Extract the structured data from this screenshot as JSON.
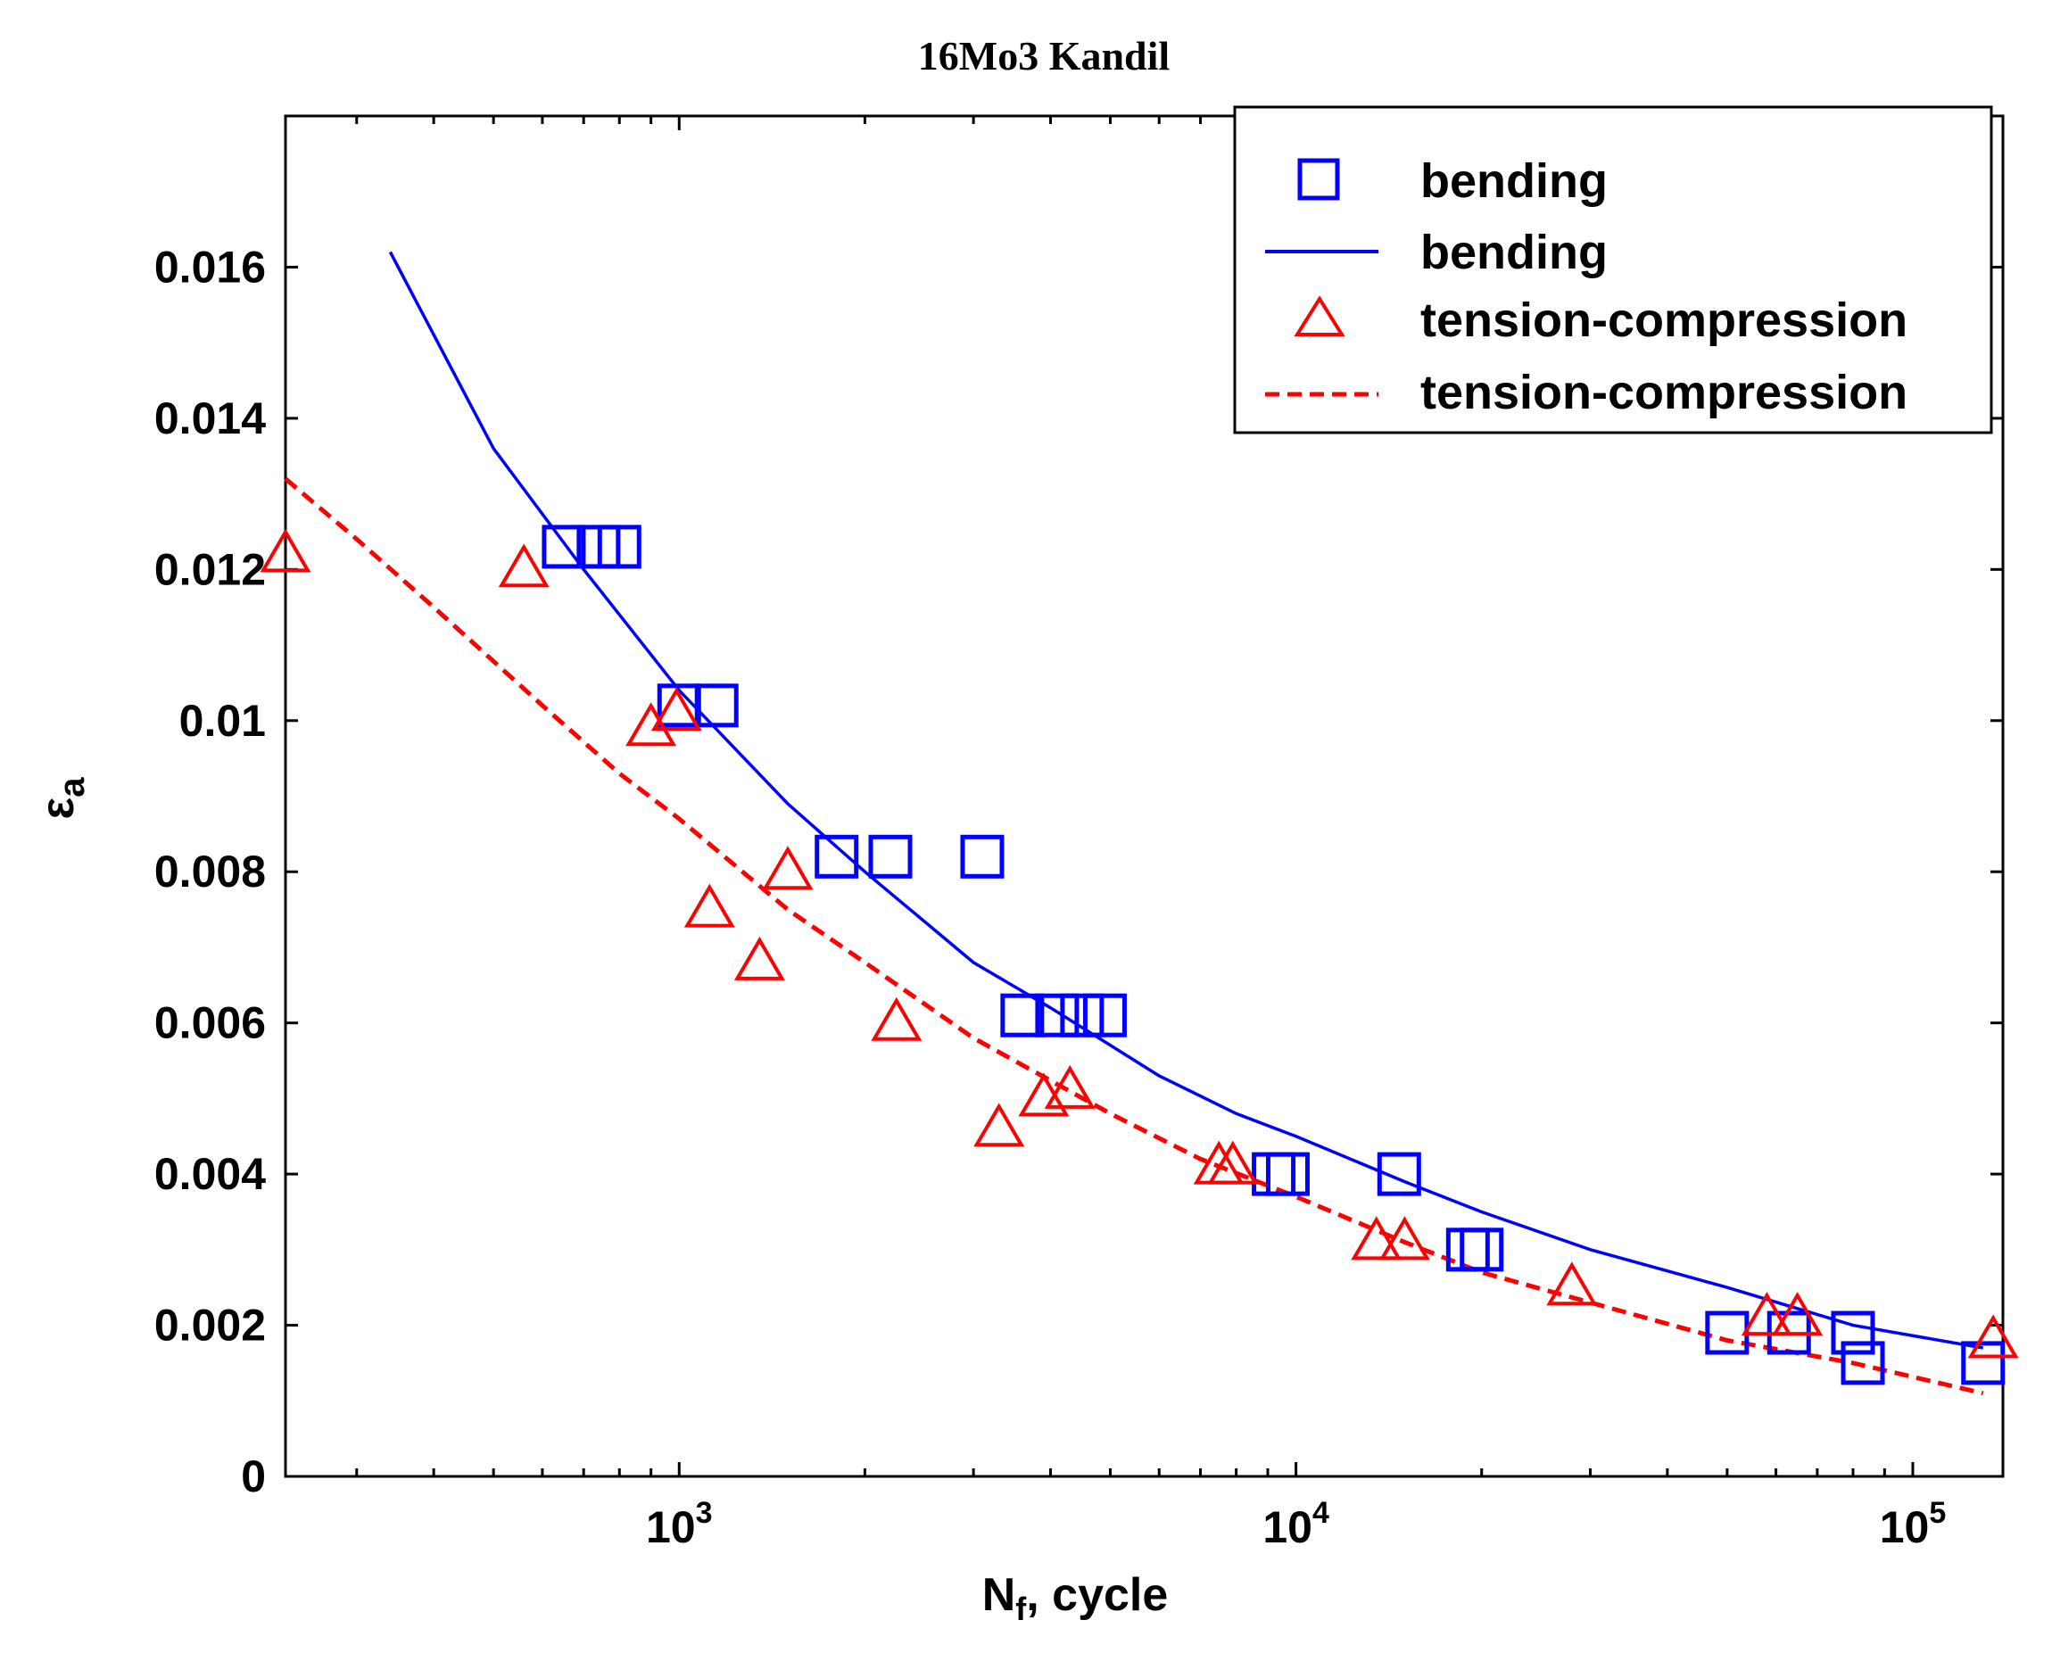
{
  "chart_data": {
    "type": "scatter",
    "title": "16Mo3  Kandil",
    "xlabel": {
      "main": "N",
      "sub": "f",
      "rest": ", cycle"
    },
    "ylabel": {
      "main": "ε",
      "sub": "a"
    },
    "xscale": "log",
    "xlim": [
      230,
      140000
    ],
    "ylim": [
      0,
      0.018
    ],
    "x_ticks": [
      {
        "value": 1000,
        "base": "10",
        "exp": "3"
      },
      {
        "value": 10000,
        "base": "10",
        "exp": "4"
      },
      {
        "value": 100000,
        "base": "10",
        "exp": "5"
      }
    ],
    "y_ticks": [
      {
        "value": 0,
        "label": "0"
      },
      {
        "value": 0.002,
        "label": "0.002"
      },
      {
        "value": 0.004,
        "label": "0.004"
      },
      {
        "value": 0.006,
        "label": "0.006"
      },
      {
        "value": 0.008,
        "label": "0.008"
      },
      {
        "value": 0.01,
        "label": "0.01"
      },
      {
        "value": 0.012,
        "label": "0.012"
      },
      {
        "value": 0.014,
        "label": "0.014"
      },
      {
        "value": 0.016,
        "label": "0.016"
      }
    ],
    "legend_position": "top-right",
    "series": [
      {
        "name": "bending",
        "kind": "points",
        "marker": "square",
        "color": "#0000ff",
        "points": [
          [
            650,
            0.0123
          ],
          [
            740,
            0.0123
          ],
          [
            800,
            0.0123
          ],
          [
            1000,
            0.0102
          ],
          [
            1150,
            0.0102
          ],
          [
            1800,
            0.0082
          ],
          [
            2200,
            0.0082
          ],
          [
            3100,
            0.0082
          ],
          [
            3600,
            0.0061
          ],
          [
            4100,
            0.0061
          ],
          [
            4500,
            0.0061
          ],
          [
            4900,
            0.0061
          ],
          [
            9200,
            0.004
          ],
          [
            9700,
            0.004
          ],
          [
            14700,
            0.004
          ],
          [
            19000,
            0.003
          ],
          [
            20000,
            0.003
          ],
          [
            50000,
            0.0019
          ],
          [
            63000,
            0.0019
          ],
          [
            80000,
            0.0019
          ],
          [
            83000,
            0.0015
          ],
          [
            130000,
            0.0015
          ]
        ]
      },
      {
        "name": "bending",
        "kind": "line",
        "style": "solid",
        "color": "#0000ff",
        "points": [
          [
            340,
            0.0162
          ],
          [
            500,
            0.0136
          ],
          [
            700,
            0.012
          ],
          [
            1000,
            0.0104
          ],
          [
            1500,
            0.0089
          ],
          [
            2000,
            0.008
          ],
          [
            3000,
            0.0068
          ],
          [
            4000,
            0.0062
          ],
          [
            6000,
            0.0053
          ],
          [
            8000,
            0.0048
          ],
          [
            10000,
            0.0045
          ],
          [
            15000,
            0.0039
          ],
          [
            20000,
            0.0035
          ],
          [
            30000,
            0.003
          ],
          [
            50000,
            0.0025
          ],
          [
            80000,
            0.002
          ],
          [
            130000,
            0.0017
          ]
        ]
      },
      {
        "name": "tension-compression",
        "kind": "points",
        "marker": "triangle",
        "color": "#ff0000",
        "points": [
          [
            230,
            0.0122
          ],
          [
            560,
            0.012
          ],
          [
            900,
            0.0099
          ],
          [
            990,
            0.0101
          ],
          [
            1120,
            0.0075
          ],
          [
            1500,
            0.008
          ],
          [
            1350,
            0.0068
          ],
          [
            2250,
            0.006
          ],
          [
            3300,
            0.0046
          ],
          [
            3900,
            0.005
          ],
          [
            4300,
            0.0051
          ],
          [
            7500,
            0.0041
          ],
          [
            7900,
            0.0041
          ],
          [
            13500,
            0.0031
          ],
          [
            15000,
            0.0031
          ],
          [
            28000,
            0.0025
          ],
          [
            58000,
            0.0021
          ],
          [
            65000,
            0.0021
          ],
          [
            135000,
            0.0018
          ]
        ]
      },
      {
        "name": "tension-compression",
        "kind": "line",
        "style": "dashed",
        "color": "#ff0000",
        "points": [
          [
            230,
            0.0132
          ],
          [
            300,
            0.0124
          ],
          [
            400,
            0.0115
          ],
          [
            600,
            0.0102
          ],
          [
            800,
            0.0093
          ],
          [
            1000,
            0.0087
          ],
          [
            1500,
            0.0075
          ],
          [
            2000,
            0.0068
          ],
          [
            3000,
            0.0058
          ],
          [
            5000,
            0.0048
          ],
          [
            7000,
            0.0042
          ],
          [
            10000,
            0.0037
          ],
          [
            15000,
            0.0031
          ],
          [
            20000,
            0.0027
          ],
          [
            30000,
            0.0023
          ],
          [
            50000,
            0.0018
          ],
          [
            80000,
            0.0015
          ],
          [
            130000,
            0.0011
          ]
        ]
      }
    ]
  }
}
